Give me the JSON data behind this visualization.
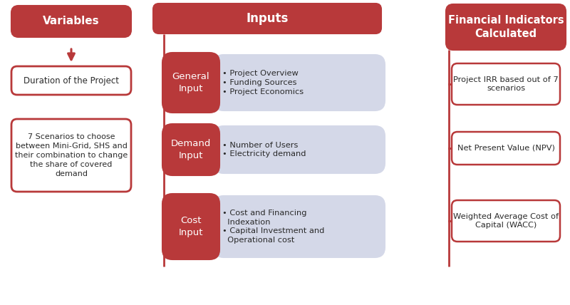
{
  "bg_color": "#ffffff",
  "red_fill": "#b8393a",
  "red_border": "#b8393a",
  "gray_box": "#d4d8e8",
  "white": "#ffffff",
  "black": "#2a2a2a",
  "col1_header": "Variables",
  "col1_box1": "Duration of the Project",
  "col1_box2": "7 Scenarios to choose\nbetween Mini-Grid, SHS and\ntheir combination to change\nthe share of covered\ndemand",
  "col2_header": "Inputs",
  "col2_items": [
    {
      "label": "General\nInput",
      "bullets": "• Project Overview\n• Funding Sources\n• Project Economics"
    },
    {
      "label": "Demand\nInput",
      "bullets": "• Number of Users\n• Electricity demand"
    },
    {
      "label": "Cost\nInput",
      "bullets": "• Cost and Financing\n  Indexation\n• Capital Investment and\n  Operational cost"
    }
  ],
  "col3_header": "Financial Indicators\nCalculated",
  "col3_items": [
    "Project IRR based out of 7\nscenarios",
    "Net Present Value (NPV)",
    "Weighted Average Cost of\nCapital (WACC)"
  ]
}
